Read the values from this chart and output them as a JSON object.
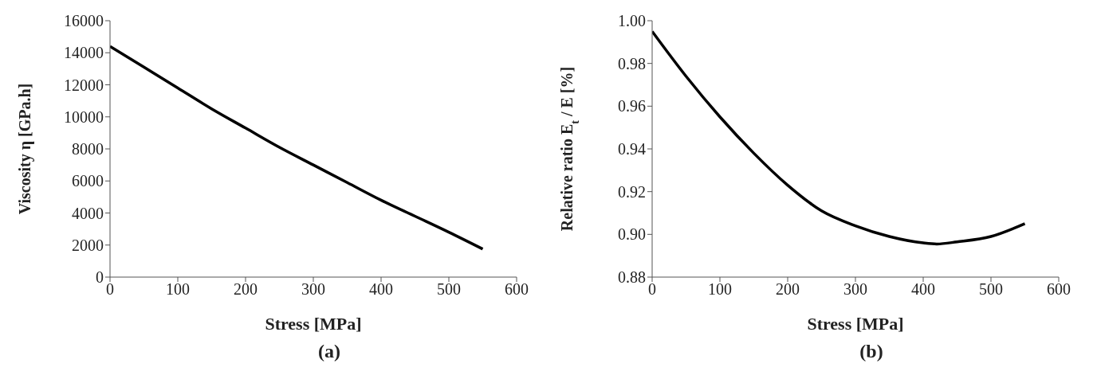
{
  "chart_data": [
    {
      "type": "line",
      "xlabel": "Stress [MPa]",
      "ylabel": "Viscosity η [GPa.h]",
      "annotations": [
        "(a)"
      ],
      "x": [
        0,
        50,
        100,
        150,
        200,
        250,
        300,
        350,
        400,
        450,
        500,
        550
      ],
      "series": [
        {
          "color": "#000000",
          "values": [
            14400,
            13100,
            11800,
            10500,
            9300,
            8100,
            7000,
            5900,
            4800,
            3800,
            2800,
            1750
          ]
        }
      ],
      "xlim": [
        0,
        600
      ],
      "xticks": [
        0,
        100,
        200,
        300,
        400,
        500,
        600
      ],
      "ylim": [
        0,
        16000
      ],
      "yticks": [
        0,
        2000,
        4000,
        6000,
        8000,
        10000,
        12000,
        14000,
        16000
      ],
      "grid": false,
      "legend": false,
      "marker": "none",
      "line_style": "solid"
    },
    {
      "type": "line",
      "xlabel": "Stress [MPa]",
      "ylabel": "Relative ratio E$_{t}$ / E [%]",
      "annotations": [
        "(b)"
      ],
      "x": [
        0,
        50,
        100,
        150,
        200,
        250,
        300,
        350,
        400,
        420,
        450,
        500,
        550
      ],
      "series": [
        {
          "color": "#000000",
          "values": [
            0.995,
            0.974,
            0.955,
            0.938,
            0.923,
            0.911,
            0.904,
            0.899,
            0.896,
            0.8955,
            0.8965,
            0.899,
            0.905
          ]
        }
      ],
      "xlim": [
        0,
        600
      ],
      "xticks": [
        0,
        100,
        200,
        300,
        400,
        500,
        600
      ],
      "ylim": [
        0.88,
        1
      ],
      "yticks": [
        {
          "value": 0.88,
          "label": "0.88"
        },
        {
          "value": 0.9,
          "label": "0.90"
        },
        {
          "value": 0.92,
          "label": "0.92"
        },
        {
          "value": 0.94,
          "label": "0.94"
        },
        {
          "value": 0.96,
          "label": "0.96"
        },
        {
          "value": 0.98,
          "label": "0.98"
        },
        {
          "value": 1,
          "label": "1.00"
        }
      ],
      "grid": false,
      "legend": false,
      "marker": "none",
      "line_style": "solid"
    }
  ]
}
